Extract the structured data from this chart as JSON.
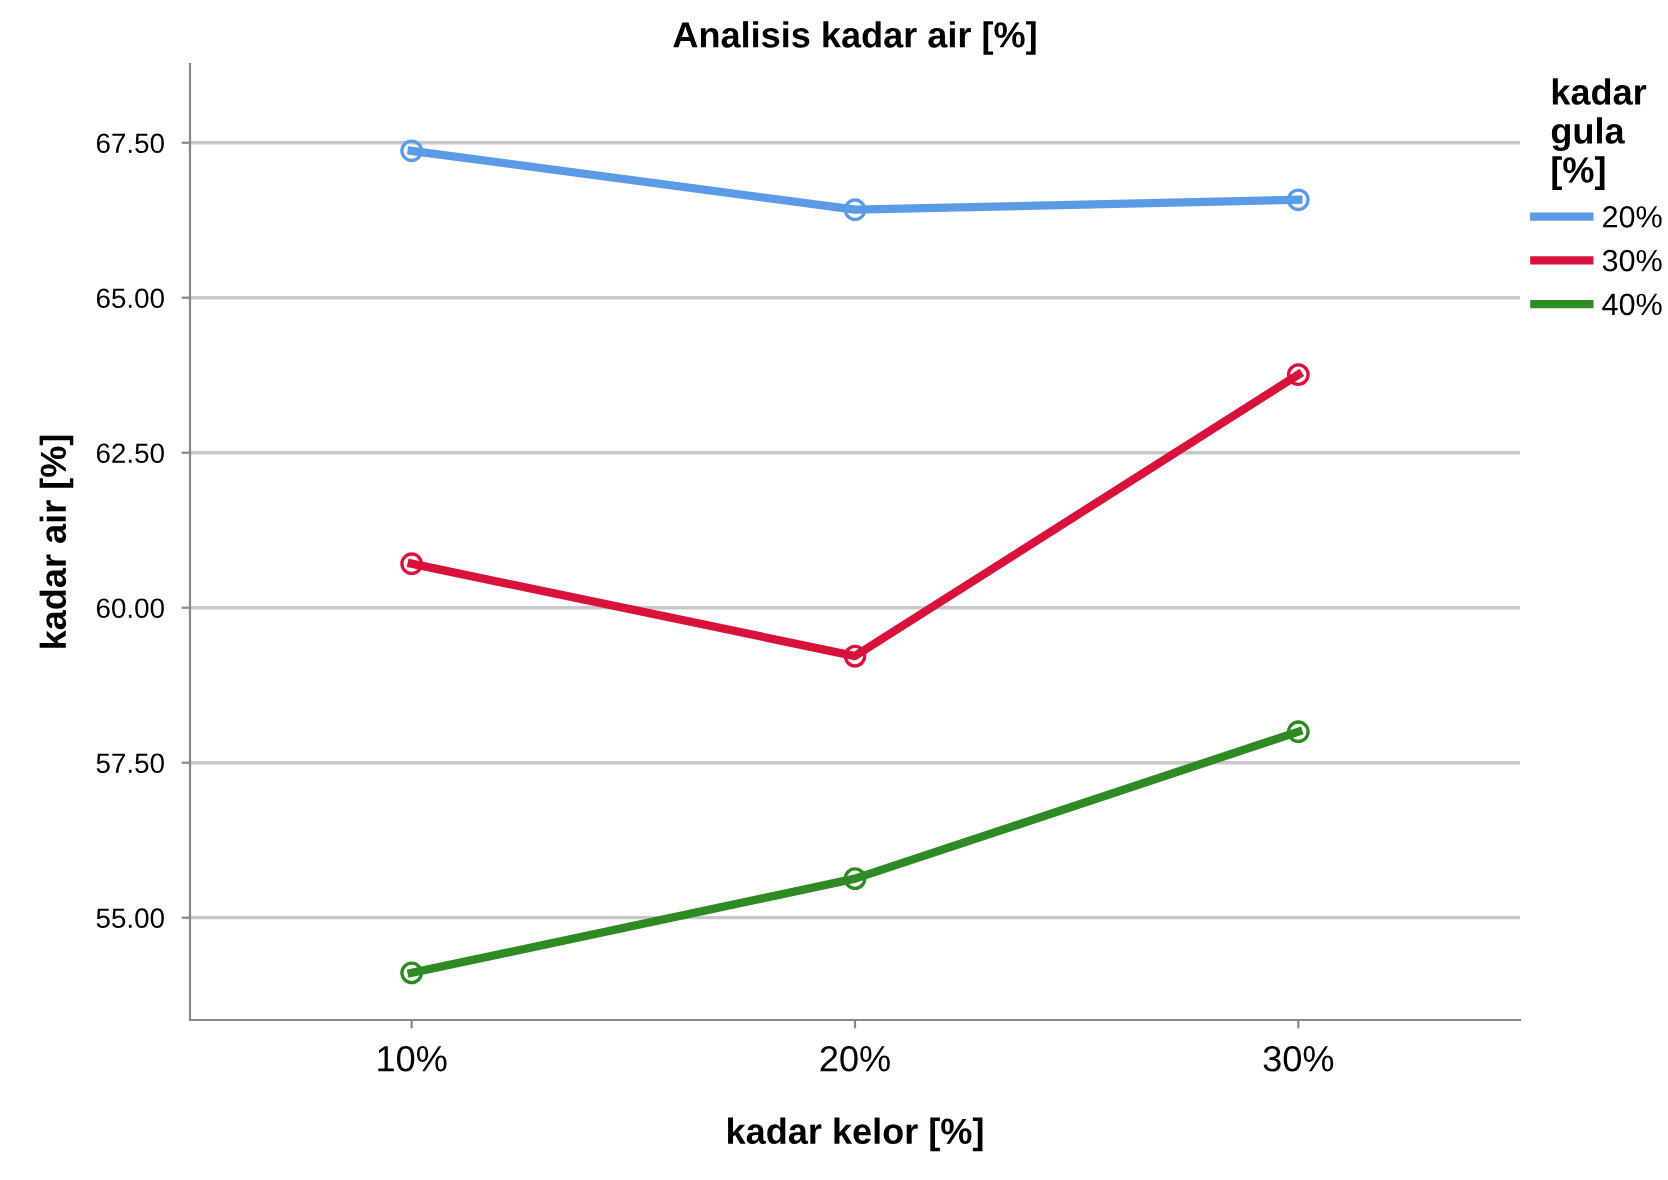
{
  "chart_data": {
    "type": "line",
    "title": "Analisis kadar air [%]",
    "xlabel": "kadar kelor [%]",
    "ylabel": "kadar air [%]",
    "legend_title": "kadar\ngula\n[%]",
    "categories": [
      "10%",
      "20%",
      "30%"
    ],
    "series": [
      {
        "name": "20%",
        "color": "#5b9be6",
        "values": [
          67.37,
          66.42,
          66.58
        ]
      },
      {
        "name": "30%",
        "color": "#d8123b",
        "values": [
          60.71,
          59.22,
          63.76
        ]
      },
      {
        "name": "40%",
        "color": "#2e8b23",
        "values": [
          54.11,
          55.63,
          58.0
        ]
      }
    ],
    "ylim": [
      53.35,
      68.77
    ],
    "yticks": [
      {
        "value": 55,
        "label": "55.00"
      },
      {
        "value": 57.5,
        "label": "57.50"
      },
      {
        "value": 60,
        "label": "60.00"
      },
      {
        "value": 62.5,
        "label": "62.50"
      },
      {
        "value": 65,
        "label": "65.00"
      },
      {
        "value": 67.5,
        "label": "67.50"
      }
    ],
    "grid": "y",
    "legend": "top right",
    "marker": "circle",
    "line_style": "solid"
  }
}
